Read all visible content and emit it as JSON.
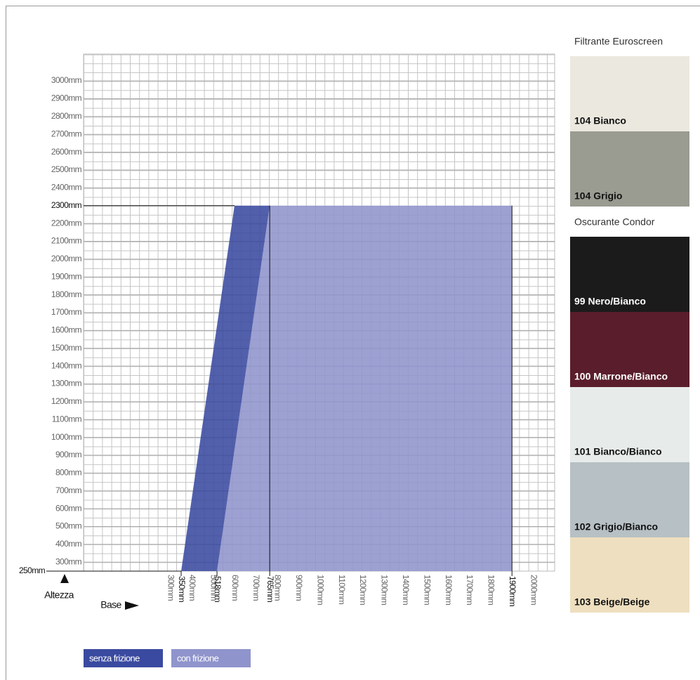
{
  "chart_data": {
    "type": "polygon",
    "x_label": "Base",
    "y_label": "Altezza",
    "series": [
      {
        "name": "con frizione",
        "color": "#8f94cc",
        "x": [
          518,
          1900,
          1900,
          765
        ],
        "values": [
          250,
          250,
          2300,
          2300
        ]
      },
      {
        "name": "senza frizione",
        "color": "#3a4aa0",
        "x": [
          350,
          518,
          765,
          600
        ],
        "values": [
          250,
          250,
          2300,
          2300
        ]
      }
    ],
    "xlim": [
      0,
      2100
    ],
    "ylim": [
      250,
      3150
    ],
    "xticks": [
      {
        "value": 300,
        "label": "300mm"
      },
      {
        "value": 400,
        "label": "400mm"
      },
      {
        "value": 500,
        "label": "500mm"
      },
      {
        "value": 600,
        "label": "600mm"
      },
      {
        "value": 700,
        "label": "700mm"
      },
      {
        "value": 800,
        "label": "800mm"
      },
      {
        "value": 900,
        "label": "900mm"
      },
      {
        "value": 1000,
        "label": "1000mm"
      },
      {
        "value": 1100,
        "label": "1100mm"
      },
      {
        "value": 1200,
        "label": "1200mm"
      },
      {
        "value": 1300,
        "label": "1300mm"
      },
      {
        "value": 1400,
        "label": "1400mm"
      },
      {
        "value": 1500,
        "label": "1500mm"
      },
      {
        "value": 1600,
        "label": "1600mm"
      },
      {
        "value": 1700,
        "label": "1700mm"
      },
      {
        "value": 1800,
        "label": "1800mm"
      },
      {
        "value": 2000,
        "label": "2000mm"
      }
    ],
    "yticks": [
      {
        "value": 300,
        "label": "300mm"
      },
      {
        "value": 400,
        "label": "400mm"
      },
      {
        "value": 500,
        "label": "500mm"
      },
      {
        "value": 600,
        "label": "600mm"
      },
      {
        "value": 700,
        "label": "700mm"
      },
      {
        "value": 800,
        "label": "800mm"
      },
      {
        "value": 900,
        "label": "900mm"
      },
      {
        "value": 1000,
        "label": "1000mm"
      },
      {
        "value": 1100,
        "label": "1100mm"
      },
      {
        "value": 1200,
        "label": "1200mm"
      },
      {
        "value": 1300,
        "label": "1300mm"
      },
      {
        "value": 1400,
        "label": "1400mm"
      },
      {
        "value": 1500,
        "label": "1500mm"
      },
      {
        "value": 1600,
        "label": "1600mm"
      },
      {
        "value": 1700,
        "label": "1700mm"
      },
      {
        "value": 1800,
        "label": "1800mm"
      },
      {
        "value": 1900,
        "label": "1900mm"
      },
      {
        "value": 2000,
        "label": "2000mm"
      },
      {
        "value": 2100,
        "label": "2100mm"
      },
      {
        "value": 2200,
        "label": "2200mm"
      },
      {
        "value": 2400,
        "label": "2400mm"
      },
      {
        "value": 2500,
        "label": "2500mm"
      },
      {
        "value": 2600,
        "label": "2600mm"
      },
      {
        "value": 2700,
        "label": "2700mm"
      },
      {
        "value": 2800,
        "label": "2800mm"
      },
      {
        "value": 2900,
        "label": "2900mm"
      },
      {
        "value": 3000,
        "label": "3000mm"
      }
    ],
    "x_markers": [
      {
        "value": 350,
        "label": "350mm"
      },
      {
        "value": 518,
        "label": "518mm"
      },
      {
        "value": 765,
        "label": "765mm"
      },
      {
        "value": 1900,
        "label": "1900mm"
      }
    ],
    "y_markers": [
      {
        "value": 250,
        "label": "250mm"
      },
      {
        "value": 2300,
        "label": "2300mm"
      }
    ],
    "grid": true
  },
  "swatch_panel": [
    {
      "title": "Filtrante Euroscreen",
      "swatches": [
        {
          "label": "104 Bianco",
          "color": "#ebe8df"
        },
        {
          "label": "104 Grigio",
          "color": "#9a9b91"
        }
      ]
    },
    {
      "title": "Oscurante Condor",
      "swatches": [
        {
          "label": "99 Nero/Bianco",
          "color": "#1b1b1c"
        },
        {
          "label": "100 Marrone/Bianco",
          "color": "#5a1d2b"
        },
        {
          "label": "101 Bianco/Bianco",
          "color": "#e7ebea"
        },
        {
          "label": "102 Grigio/Bianco",
          "color": "#b7c0c4"
        },
        {
          "label": "103 Beige/Beige",
          "color": "#eedfc0"
        }
      ]
    }
  ]
}
